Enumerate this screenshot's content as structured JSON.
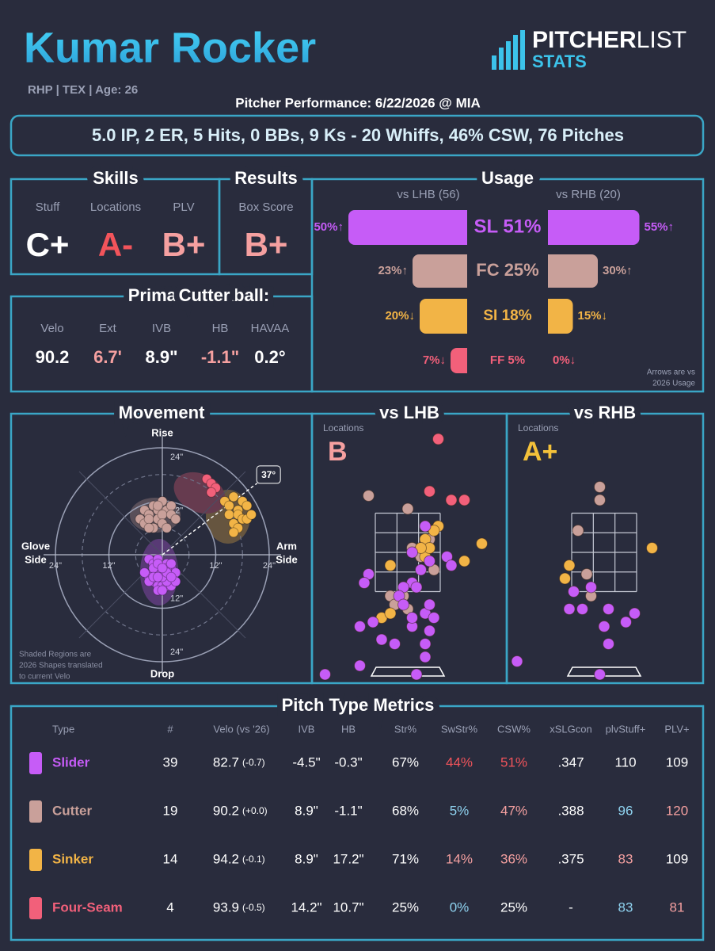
{
  "header": {
    "name": "Kumar Rocker",
    "meta": "RHP | TEX | Age: 26",
    "logo": [
      "PITCHER",
      "LIST"
    ],
    "logo_sub": "STATS",
    "subtitle": "Pitcher Performance: 6/22/2026 @ MIA",
    "summary": "5.0 IP, 2 ER, 5 Hits, 0 BBs, 9 Ks - 20 Whiffs, 46% CSW, 76 Pitches"
  },
  "skills": {
    "title": "Skills",
    "items": [
      {
        "label": "Stuff",
        "grade": "C+",
        "color": "#ffffff"
      },
      {
        "label": "Locations",
        "grade": "A-",
        "color": "#f2545b"
      },
      {
        "label": "PLV",
        "grade": "B+",
        "color": "#f5a0a0"
      }
    ]
  },
  "results": {
    "title": "Results",
    "items": [
      {
        "label": "Box Score",
        "grade": "B+",
        "color": "#f5a0a0"
      }
    ]
  },
  "fastball": {
    "title": "Primary Fastball:",
    "pitch": "Cutter",
    "pitch_color": "#c9a09a",
    "metrics": [
      {
        "label": "Velo",
        "value": "90.2",
        "color": "#ffffff"
      },
      {
        "label": "Ext",
        "value": "6.7'",
        "color": "#f5a0a0"
      },
      {
        "label": "IVB",
        "value": "8.9\"",
        "color": "#ffffff"
      },
      {
        "label": "HB",
        "value": "-1.1\"",
        "color": "#f5a0a0"
      },
      {
        "label": "HAVAA",
        "value": "0.2°",
        "color": "#ffffff"
      }
    ]
  },
  "chart_data": [
    {
      "type": "bar",
      "orientation": "horizontal",
      "title": "Usage",
      "categories": [
        "SL 51%",
        "FC 25%",
        "SI 18%",
        "FF 5%"
      ],
      "colors": [
        "#c65cf7",
        "#c9a09a",
        "#f2b446",
        "#f2607a"
      ],
      "series": [
        {
          "name": "vs LHB (56)",
          "values": [
            50,
            23,
            20,
            7
          ],
          "value_labels": [
            "50%↑",
            "23%↑",
            "20%↓",
            "7%↓"
          ]
        },
        {
          "name": "vs RHB (20)",
          "values": [
            55,
            30,
            15,
            0
          ],
          "value_labels": [
            "55%↑",
            "30%↑",
            "15%↓",
            "0%↓"
          ]
        }
      ],
      "note": [
        "Arrows are vs",
        "2026 Usage"
      ]
    },
    {
      "type": "scatter",
      "title": "Movement",
      "labels": {
        "top": "Rise",
        "bottom": "Drop",
        "left": [
          "Glove",
          "Side"
        ],
        "right": [
          "Arm",
          "Side"
        ]
      },
      "xticks": [
        {
          "value": -24,
          "label": "24\""
        },
        {
          "value": -12,
          "label": "12\""
        },
        {
          "value": 12,
          "label": "12\""
        },
        {
          "value": 24,
          "label": "24\""
        }
      ],
      "yticks": [
        {
          "value": 24,
          "label": "24\""
        },
        {
          "value": 12,
          "label": "12\""
        },
        {
          "value": -12,
          "label": "12\""
        },
        {
          "value": -24,
          "label": "24\""
        }
      ],
      "arm_angle": {
        "value": 37,
        "label": "37°"
      },
      "note": [
        "Shaded Regions are",
        "2026 Shapes translated",
        "to current Velo"
      ],
      "series": [
        {
          "color": "#c9a09a",
          "x": [
            -5,
            -4,
            -3,
            -2,
            -1,
            0,
            1,
            2,
            -4,
            -3,
            -1,
            0,
            2,
            -2,
            0,
            1,
            -3,
            -1,
            3
          ],
          "y": [
            8,
            10,
            9,
            11,
            10,
            12,
            10,
            11,
            7,
            8,
            8,
            9,
            9,
            6,
            7,
            6,
            6,
            11,
            8
          ]
        },
        {
          "color": "#f2b446",
          "x": [
            14,
            15,
            16,
            17,
            18,
            19,
            15,
            17,
            18,
            16,
            19,
            20,
            17,
            16
          ],
          "y": [
            12,
            11,
            13,
            10,
            12,
            11,
            9,
            9,
            8,
            7,
            8,
            9,
            6,
            5
          ]
        },
        {
          "color": "#f2607a",
          "x": [
            10,
            11,
            12,
            11
          ],
          "y": [
            17,
            16,
            15,
            14
          ]
        },
        {
          "color": "#c65cf7",
          "x": [
            -3,
            -2,
            -1,
            0,
            1,
            2,
            -2,
            -1,
            0,
            1,
            2,
            3,
            -3,
            -2,
            -1,
            0,
            1,
            2,
            -1,
            0,
            1,
            -2,
            -1,
            0,
            1,
            2,
            -3,
            -1,
            0,
            2,
            1,
            -2,
            0,
            1,
            -1,
            0,
            3,
            -4,
            2
          ],
          "y": [
            -1,
            -2,
            -1,
            -3,
            -2,
            -3,
            -4,
            -4,
            -5,
            -4,
            -5,
            -4,
            -5,
            -6,
            -6,
            -6,
            -5,
            -6,
            -7,
            -7,
            -7,
            -3,
            -2,
            -4,
            -3,
            -2,
            -6,
            -8,
            -8,
            -7,
            -6,
            -5,
            -5,
            -4,
            -5,
            -3,
            -6,
            -4,
            -5
          ]
        }
      ]
    },
    {
      "type": "scatter",
      "title": "vs LHB",
      "subtitle": "Locations",
      "grade": "B",
      "grade_color": "#f5a0a0",
      "series": [
        {
          "color": "#f2607a",
          "x": [
            0.7,
            0.5,
            1.0,
            1.3
          ],
          "y": [
            5.2,
            4.0,
            3.8,
            3.8
          ]
        },
        {
          "color": "#c9a09a",
          "x": [
            -0.9,
            0.0,
            0.6,
            0.1,
            0.2,
            0.5,
            0.5,
            -0.4,
            -0.1,
            0.0,
            -0.3,
            0.3,
            0.6
          ],
          "y": [
            3.9,
            3.6,
            3.1,
            2.7,
            2.6,
            2.7,
            2.9,
            1.6,
            1.6,
            1.3,
            1.4,
            2.5,
            2.2
          ]
        },
        {
          "color": "#f2b446",
          "x": [
            0.7,
            0.6,
            0.4,
            0.4,
            1.7,
            1.3,
            -0.4,
            -0.6,
            -0.4,
            0.5,
            0.3
          ],
          "y": [
            3.2,
            3.1,
            2.9,
            2.5,
            2.8,
            2.4,
            2.3,
            1.1,
            1.2,
            2.7,
            2.7
          ]
        },
        {
          "color": "#c65cf7",
          "x": [
            0.4,
            0.1,
            0.3,
            0.9,
            1.0,
            0.5,
            0.1,
            -0.9,
            -1.0,
            0.2,
            -0.1,
            -0.2,
            -0.8,
            -1.1,
            -0.6,
            -0.3,
            0.1,
            0.4,
            0.6,
            0.5,
            0.4,
            0.4,
            0.5,
            -0.1,
            -1.1,
            -1.9,
            0.2,
            0.1
          ],
          "y": [
            3.2,
            2.6,
            2.2,
            2.5,
            2.3,
            2.4,
            1.9,
            2.1,
            1.9,
            1.8,
            1.8,
            1.6,
            1.0,
            0.9,
            0.6,
            0.5,
            0.9,
            1.2,
            1.1,
            0.8,
            0.5,
            0.2,
            1.4,
            1.4,
            0.0,
            -0.2,
            -0.2,
            1.1
          ]
        }
      ]
    },
    {
      "type": "scatter",
      "title": "vs RHB",
      "subtitle": "Locations",
      "grade": "A+",
      "grade_color": "#f3c13a",
      "series": [
        {
          "color": "#c9a09a",
          "x": [
            -0.1,
            -0.1,
            -0.6,
            -0.4,
            -0.3,
            0.0
          ],
          "y": [
            4.1,
            3.8,
            3.1,
            2.1,
            1.6,
            0.9
          ]
        },
        {
          "color": "#f2b446",
          "x": [
            1.1,
            -0.8,
            -0.9
          ],
          "y": [
            2.7,
            2.3,
            2.0
          ]
        },
        {
          "color": "#c65cf7",
          "x": [
            -0.8,
            -0.5,
            0.1,
            0.7,
            0.1,
            -0.1,
            -2.0,
            -0.7,
            -0.3,
            0.5,
            0.0
          ],
          "y": [
            1.3,
            1.3,
            1.3,
            1.2,
            0.5,
            -0.2,
            0.1,
            1.7,
            1.8,
            1.0,
            0.9
          ]
        }
      ]
    }
  ],
  "table": {
    "title": "Pitch Type Metrics",
    "columns": [
      "Type",
      "#",
      "Velo (vs '26)",
      "IVB",
      "HB",
      "Str%",
      "SwStr%",
      "CSW%",
      "xSLGcon",
      "plvStuff+",
      "PLV+"
    ],
    "rows": [
      {
        "color": "#c65cf7",
        "cells": [
          "Slider",
          "39",
          "82.7",
          "(-0.7)",
          "-4.5\"",
          "-0.3\"",
          "67%",
          "44%",
          "51%",
          ".347",
          "110",
          "109"
        ],
        "tones": {
          "7": "#f2545b",
          "8": "#f2545b"
        }
      },
      {
        "color": "#c9a09a",
        "cells": [
          "Cutter",
          "19",
          "90.2",
          "(+0.0)",
          "8.9\"",
          "-1.1\"",
          "68%",
          "5%",
          "47%",
          ".388",
          "96",
          "120"
        ],
        "tones": {
          "7": "#8fd3f0",
          "8": "#f5a0a0",
          "10": "#8fd3f0",
          "11": "#f5a0a0"
        }
      },
      {
        "color": "#f2b446",
        "cells": [
          "Sinker",
          "14",
          "94.2",
          "(-0.1)",
          "8.9\"",
          "17.2\"",
          "71%",
          "14%",
          "36%",
          ".375",
          "83",
          "109"
        ],
        "tones": {
          "7": "#f5a0a0",
          "8": "#f5a0a0",
          "10": "#f5a0a0"
        }
      },
      {
        "color": "#f2607a",
        "cells": [
          "Four-Seam",
          "4",
          "93.9",
          "(-0.5)",
          "14.2\"",
          "10.7\"",
          "25%",
          "0%",
          "25%",
          "-",
          "83",
          "81"
        ],
        "tones": {
          "7": "#8fd3f0",
          "10": "#8fd3f0",
          "11": "#f5a0a0"
        }
      }
    ]
  }
}
